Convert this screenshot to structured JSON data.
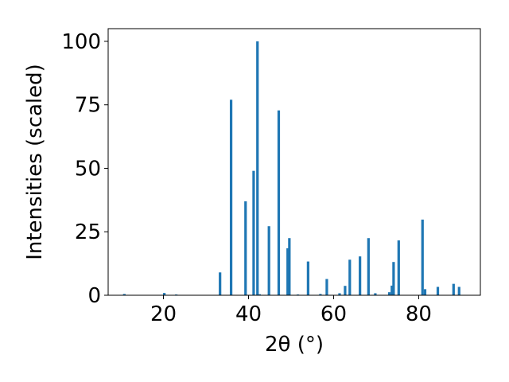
{
  "chart_data": {
    "type": "bar",
    "title": "",
    "xlabel": "2θ (°)",
    "ylabel": "Intensities (scaled)",
    "xlim": [
      7,
      94.5
    ],
    "ylim": [
      0,
      105
    ],
    "xticks": [
      20,
      40,
      60,
      80
    ],
    "yticks": [
      0,
      25,
      50,
      75,
      100
    ],
    "grid": false,
    "bar_color": "#1f77b4",
    "bar_width": 0.6,
    "x": [
      10.8,
      20.2,
      23.0,
      33.3,
      35.9,
      39.3,
      41.2,
      42.1,
      42.6,
      44.8,
      47.1,
      49.2,
      49.6,
      51.6,
      54.0,
      56.9,
      58.4,
      61.4,
      62.7,
      63.8,
      66.2,
      68.2,
      69.8,
      73.1,
      73.7,
      74.1,
      75.3,
      80.9,
      81.5,
      84.5,
      88.2,
      89.5
    ],
    "values": [
      0.5,
      0.9,
      0.3,
      9.0,
      77.0,
      37.0,
      49.0,
      100.0,
      0.4,
      27.2,
      72.8,
      18.5,
      22.5,
      0.3,
      13.3,
      0.5,
      6.4,
      0.8,
      3.7,
      14.0,
      15.3,
      22.5,
      0.8,
      1.2,
      3.8,
      13.1,
      21.6,
      29.8,
      2.4,
      3.3,
      4.5,
      3.3
    ]
  }
}
